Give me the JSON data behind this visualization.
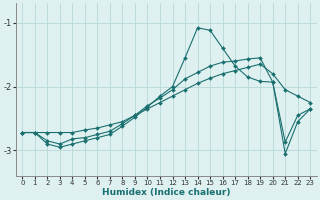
{
  "xlabel": "Humidex (Indice chaleur)",
  "bg_color": "#dff0f0",
  "grid_color": "#b8d8d8",
  "line_color": "#1a7070",
  "xlim": [
    -0.5,
    23.5
  ],
  "ylim": [
    -3.4,
    -0.7
  ],
  "yticks": [
    -3,
    -2,
    -1
  ],
  "xticks": [
    0,
    1,
    2,
    3,
    4,
    5,
    6,
    7,
    8,
    9,
    10,
    11,
    12,
    13,
    14,
    15,
    16,
    17,
    18,
    19,
    20,
    21,
    22,
    23
  ],
  "line1_x": [
    0,
    1,
    2,
    3,
    4,
    5,
    6,
    7,
    8,
    9,
    10,
    11,
    12,
    13,
    14,
    15,
    16,
    17,
    18,
    19,
    20,
    21,
    22,
    23
  ],
  "line1_y": [
    -2.72,
    -2.72,
    -2.72,
    -2.72,
    -2.72,
    -2.68,
    -2.65,
    -2.6,
    -2.55,
    -2.45,
    -2.35,
    -2.25,
    -2.15,
    -2.05,
    -1.95,
    -1.87,
    -1.8,
    -1.75,
    -1.7,
    -1.65,
    -1.8,
    -2.05,
    -2.15,
    -2.25
  ],
  "line2_x": [
    0,
    1,
    2,
    3,
    4,
    5,
    6,
    7,
    8,
    9,
    10,
    11,
    12,
    13,
    14,
    15,
    16,
    17,
    18,
    19,
    20,
    21,
    22,
    23
  ],
  "line2_y": [
    -2.72,
    -2.72,
    -2.85,
    -2.9,
    -2.82,
    -2.8,
    -2.75,
    -2.7,
    -2.58,
    -2.45,
    -2.3,
    -2.18,
    -2.05,
    -1.88,
    -1.78,
    -1.68,
    -1.62,
    -1.6,
    -1.57,
    -1.55,
    -1.93,
    -3.05,
    -2.55,
    -2.35
  ],
  "line3_x": [
    0,
    1,
    2,
    3,
    4,
    5,
    6,
    7,
    8,
    9,
    10,
    11,
    12,
    13,
    14,
    15,
    16,
    17,
    18,
    19,
    20,
    21,
    22,
    23
  ],
  "line3_y": [
    -2.72,
    -2.72,
    -2.9,
    -2.95,
    -2.9,
    -2.85,
    -2.8,
    -2.75,
    -2.62,
    -2.48,
    -2.32,
    -2.15,
    -2.0,
    -1.55,
    -1.08,
    -1.12,
    -1.4,
    -1.68,
    -1.85,
    -1.92,
    -1.93,
    -2.87,
    -2.45,
    -2.35
  ]
}
